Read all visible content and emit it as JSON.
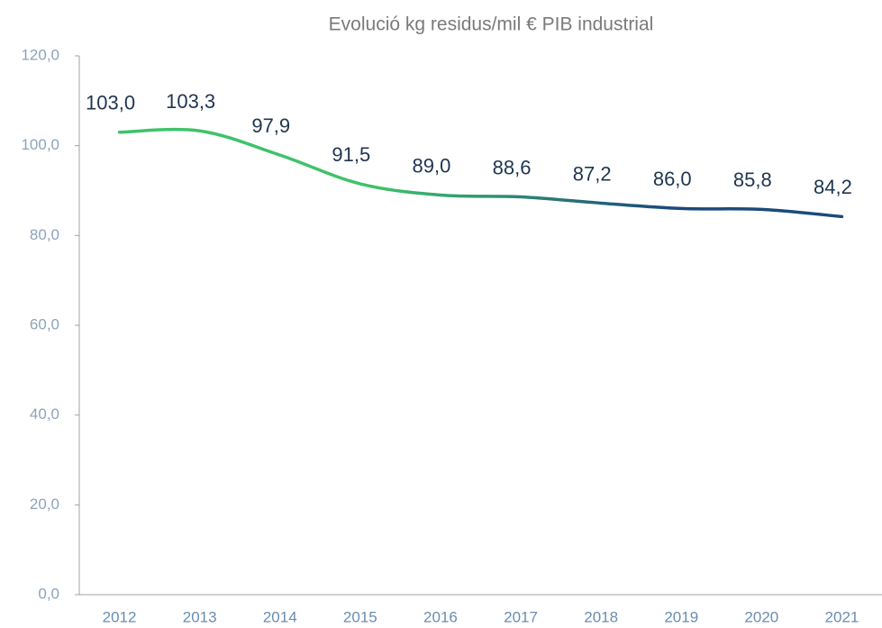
{
  "chart_data": {
    "type": "line",
    "title": "Evolució kg residus/mil € PIB industrial",
    "categories": [
      "2012",
      "2013",
      "2014",
      "2015",
      "2016",
      "2017",
      "2018",
      "2019",
      "2020",
      "2021"
    ],
    "values": [
      103.0,
      103.3,
      97.9,
      91.5,
      89.0,
      88.6,
      87.2,
      86.0,
      85.8,
      84.2
    ],
    "value_labels": [
      "103,0",
      "103,3",
      "97,9",
      "91,5",
      "89,0",
      "88,6",
      "87,2",
      "86,0",
      "85,8",
      "84,2"
    ],
    "color": [
      "#3fc26a",
      "#1b4a7c"
    ],
    "smooth": true,
    "ylim": [
      0,
      120
    ],
    "yticks": [
      {
        "value": 0,
        "label": "0,0"
      },
      {
        "value": 20,
        "label": "20,0"
      },
      {
        "value": 40,
        "label": "40,0"
      },
      {
        "value": 60,
        "label": "60,0"
      },
      {
        "value": 80,
        "label": "80,0"
      },
      {
        "value": 100,
        "label": "100,0"
      },
      {
        "value": 120,
        "label": "120,0"
      }
    ],
    "grid": false
  }
}
